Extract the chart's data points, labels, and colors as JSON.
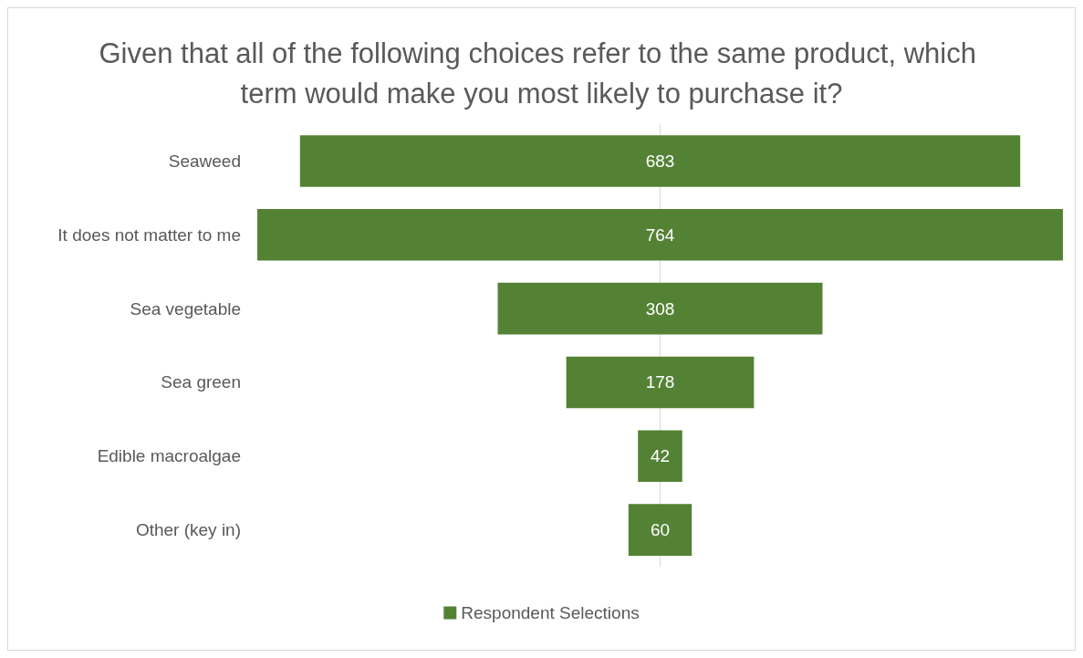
{
  "chart_data": {
    "type": "other",
    "title": "Given that all of the following choices refer to the same product, which term would make you most likely to purchase it?",
    "categories": [
      "Seaweed",
      "It does not matter to me",
      "Sea vegetable",
      "Sea green",
      "Edible macroalgae",
      "Other (key in)"
    ],
    "series": [
      {
        "name": "Respondent Selections",
        "color": "#548235",
        "values": [
          683,
          764,
          308,
          178,
          42,
          60
        ]
      }
    ],
    "data_labels": true,
    "legend": "bottom"
  }
}
